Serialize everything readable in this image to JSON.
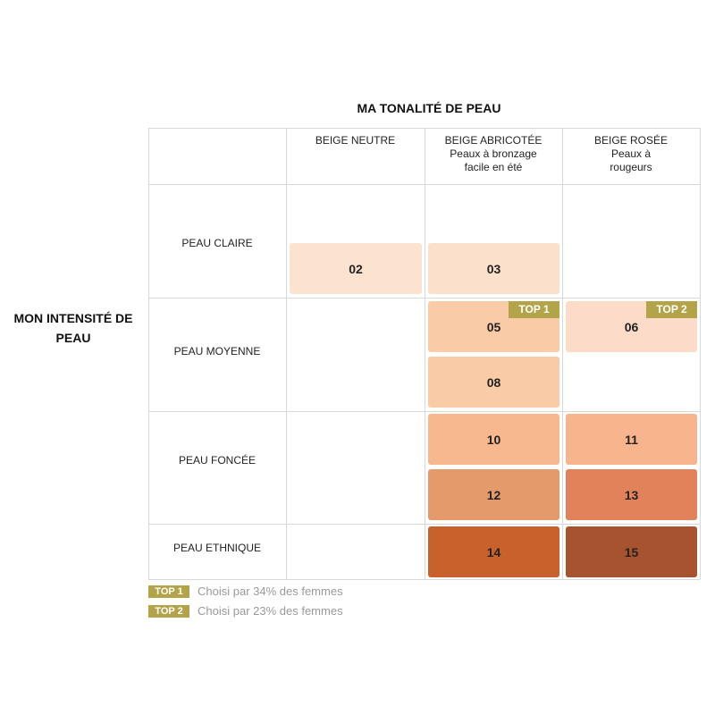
{
  "title": "MA TONALITÉ DE PEAU",
  "row_axis_label": "MON INTENSITÉ DE PEAU",
  "columns": [
    {
      "title": "BEIGE NEUTRE"
    },
    {
      "title": "BEIGE ABRICOTÉE",
      "subtitle": "Peaux à bronzage facile en été"
    },
    {
      "title": "BEIGE ROSÉE",
      "subtitle": "Peaux à rougeurs"
    }
  ],
  "rows": [
    {
      "label": "PEAU CLAIRE",
      "cells": [
        [
          {
            "code": "02",
            "color": "#fbe3cf"
          }
        ],
        [
          {
            "code": "03",
            "color": "#fbe0cc"
          }
        ],
        []
      ]
    },
    {
      "label": "PEAU MOYENNE",
      "cells": [
        [],
        [
          {
            "code": "05",
            "color": "#f9cba6",
            "badge": "TOP 1"
          },
          {
            "code": "08",
            "color": "#f9cba6"
          }
        ],
        [
          {
            "code": "06",
            "color": "#fcdcc8",
            "badge": "TOP 2"
          }
        ]
      ]
    },
    {
      "label": "PEAU FONCÉE",
      "cells": [
        [],
        [
          {
            "code": "10",
            "color": "#f8b88e"
          },
          {
            "code": "12",
            "color": "#e59a6b"
          }
        ],
        [
          {
            "code": "11",
            "color": "#f8b48c"
          },
          {
            "code": "13",
            "color": "#e2825b"
          }
        ]
      ]
    },
    {
      "label": "PEAU ETHNIQUE",
      "cells": [
        [],
        [
          {
            "code": "14",
            "color": "#c8612c"
          }
        ],
        [
          {
            "code": "15",
            "color": "#a8532f"
          }
        ]
      ]
    }
  ],
  "legend": [
    {
      "badge": "TOP 1",
      "text": "Choisi par 34% des femmes"
    },
    {
      "badge": "TOP 2",
      "text": "Choisi par 23% des femmes"
    }
  ]
}
